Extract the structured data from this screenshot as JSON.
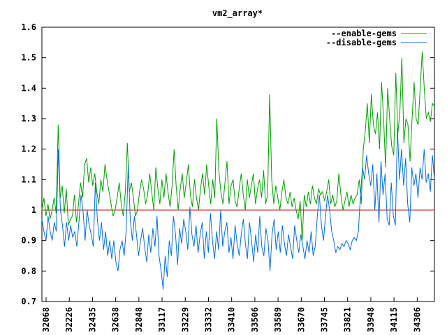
{
  "chart_data": {
    "type": "line",
    "title": "vm2_array*",
    "xlabel": "",
    "ylabel": "",
    "ylim": [
      0.7,
      1.6
    ],
    "yticks": [
      "0.7",
      "0.8",
      "0.9",
      "1",
      "1.1",
      "1.2",
      "1.3",
      "1.4",
      "1.5",
      "1.6"
    ],
    "x_tick_labels": [
      "32068",
      "32226",
      "32435",
      "32638",
      "32848",
      "33117",
      "33229",
      "33332",
      "33410",
      "33506",
      "33589",
      "33670",
      "33745",
      "33821",
      "33948",
      "34115",
      "34306"
    ],
    "reference_line": {
      "value": 1.0,
      "color": "#e00000"
    },
    "grid": false,
    "legend_position": "top-right",
    "series": [
      {
        "name": "--enable-gems",
        "color": "#00a000",
        "values": [
          1.0,
          1.04,
          0.98,
          1.02,
          0.97,
          1.0,
          1.04,
          0.99,
          1.28,
          1.04,
          1.08,
          0.99,
          1.07,
          0.95,
          0.97,
          0.98,
          1.05,
          0.96,
          1.02,
          1.09,
          1.04,
          1.15,
          1.17,
          1.09,
          1.14,
          1.08,
          1.12,
          1.06,
          1.02,
          1.1,
          1.06,
          1.15,
          1.1,
          1.06,
          1.02,
          0.98,
          1.0,
          1.04,
          1.09,
          1.02,
          0.98,
          1.06,
          1.22,
          1.06,
          1.09,
          1.04,
          0.98,
          1.0,
          1.06,
          1.1,
          1.07,
          1.02,
          1.05,
          1.12,
          1.06,
          1.0,
          1.14,
          1.07,
          1.02,
          1.1,
          1.04,
          1.12,
          1.06,
          1.01,
          1.08,
          1.2,
          1.08,
          1.0,
          1.07,
          1.12,
          1.04,
          1.09,
          1.15,
          1.05,
          1.01,
          1.1,
          1.04,
          1.0,
          1.07,
          1.12,
          1.05,
          1.15,
          1.08,
          1.02,
          1.1,
          1.04,
          1.3,
          1.13,
          1.06,
          1.02,
          1.09,
          1.16,
          1.02,
          1.08,
          1.1,
          1.03,
          1.01,
          1.07,
          1.12,
          1.05,
          1.0,
          1.1,
          1.04,
          1.08,
          1.12,
          1.02,
          1.07,
          1.1,
          1.04,
          1.13,
          1.02,
          1.05,
          1.38,
          1.1,
          1.02,
          1.08,
          1.04,
          1.0,
          1.06,
          1.1,
          1.04,
          1.02,
          1.06,
          1.01,
          1.04,
          1.0,
          0.97,
          1.03,
          0.9,
          1.05,
          1.01,
          1.06,
          1.02,
          1.08,
          1.04,
          1.02,
          1.07,
          1.05,
          1.06,
          1.03,
          1.06,
          1.1,
          1.02,
          1.05,
          1.01,
          1.03,
          1.12,
          1.05,
          1.0,
          1.03,
          1.06,
          1.01,
          1.05,
          1.02,
          1.04,
          1.05,
          1.1,
          1.02,
          1.2,
          1.26,
          1.35,
          1.22,
          1.38,
          1.28,
          1.25,
          1.32,
          1.2,
          1.42,
          1.3,
          1.14,
          1.4,
          1.3,
          1.21,
          1.18,
          1.45,
          1.25,
          1.32,
          1.5,
          1.22,
          1.3,
          1.28,
          1.16,
          1.3,
          1.42,
          1.3,
          1.28,
          1.4,
          1.52,
          1.4,
          1.3,
          1.32,
          1.29,
          1.35,
          1.34
        ]
      },
      {
        "name": "--disable-gems",
        "color": "#0070e0",
        "values": [
          0.97,
          0.93,
          0.9,
          0.98,
          0.93,
          0.9,
          0.96,
          0.93,
          1.2,
          1.0,
          0.95,
          0.88,
          0.96,
          0.9,
          0.95,
          0.91,
          0.93,
          0.88,
          0.96,
          1.05,
          1.0,
          0.9,
          1.0,
          0.95,
          0.92,
          0.88,
          1.09,
          0.97,
          0.9,
          0.96,
          0.87,
          0.93,
          0.85,
          0.9,
          0.84,
          0.9,
          0.83,
          0.8,
          0.87,
          0.9,
          0.85,
          0.93,
          1.15,
          0.97,
          0.9,
          0.98,
          0.92,
          0.85,
          0.9,
          0.94,
          0.88,
          0.83,
          0.92,
          0.86,
          0.94,
          0.88,
          0.98,
          0.85,
          0.8,
          0.74,
          0.85,
          0.78,
          0.9,
          0.85,
          0.98,
          0.92,
          0.82,
          0.94,
          0.89,
          0.97,
          0.93,
          0.87,
          1.01,
          0.92,
          0.88,
          0.95,
          0.86,
          0.92,
          0.96,
          0.84,
          0.93,
          0.86,
          0.99,
          0.9,
          0.84,
          0.93,
          0.87,
          1.0,
          0.88,
          0.93,
          0.96,
          0.86,
          0.91,
          0.84,
          0.95,
          0.89,
          0.85,
          0.92,
          0.97,
          0.89,
          0.84,
          0.96,
          0.9,
          0.83,
          0.92,
          0.86,
          0.98,
          0.88,
          0.85,
          0.94,
          0.9,
          0.8,
          0.92,
          0.97,
          0.87,
          0.93,
          0.86,
          0.95,
          0.89,
          0.85,
          0.92,
          0.88,
          0.84,
          0.95,
          0.9,
          0.86,
          0.92,
          0.88,
          0.84,
          0.9,
          0.86,
          0.93,
          0.85,
          0.88,
          0.98,
          1.05,
          0.95,
          0.9,
          0.98,
          1.05,
          1.0,
          0.93,
          0.9,
          0.86,
          0.88,
          0.87,
          0.89,
          0.88,
          0.9,
          0.89,
          0.87,
          0.9,
          0.91,
          0.9,
          0.93,
          1.05,
          1.14,
          1.1,
          1.18,
          1.12,
          1.08,
          1.15,
          1.0,
          1.12,
          0.96,
          1.16,
          1.05,
          1.12,
          0.97,
          0.95,
          1.09,
          0.98,
          0.95,
          1.27,
          1.1,
          1.2,
          1.08,
          1.17,
          1.02,
          0.96,
          1.14,
          1.08,
          1.12,
          1.04,
          1.14,
          1.1,
          1.2,
          1.09,
          1.12,
          1.06,
          1.18,
          1.1
        ]
      }
    ]
  }
}
